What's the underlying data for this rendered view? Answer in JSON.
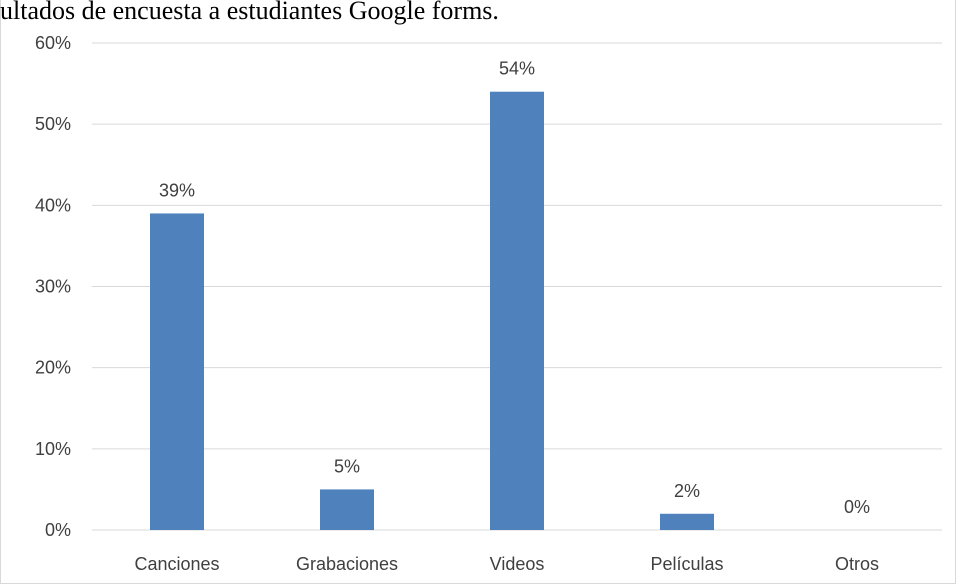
{
  "caption": "ultados de encuesta a estudiantes Google forms.",
  "chart_data": {
    "type": "bar",
    "categories": [
      "Canciones",
      "Grabaciones",
      "Videos",
      "Películas",
      "Otros"
    ],
    "values": [
      39,
      5,
      54,
      2,
      0
    ],
    "data_labels": [
      "39%",
      "5%",
      "54%",
      "2%",
      "0%"
    ],
    "y_ticks": [
      "0%",
      "10%",
      "20%",
      "30%",
      "40%",
      "50%",
      "60%"
    ],
    "ylim": [
      0,
      60
    ],
    "grid": true,
    "legend": "none",
    "bar_color": "#4f81bd",
    "grid_color": "#d9d9d9",
    "text_color": "#404040"
  }
}
